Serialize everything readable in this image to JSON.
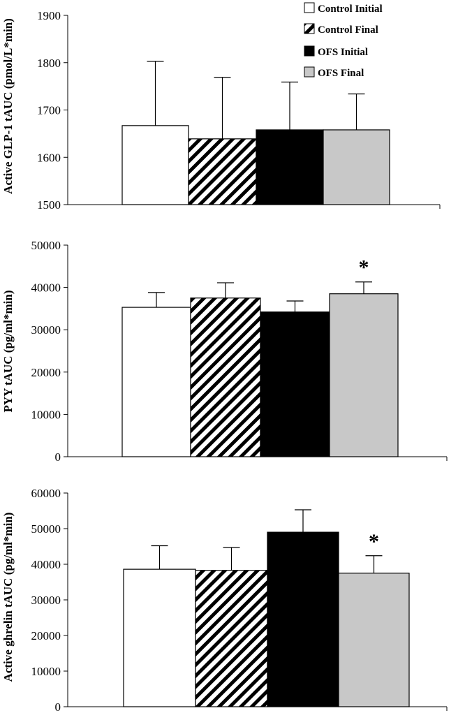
{
  "legend": [
    {
      "label": "Control Initial",
      "fill": "white"
    },
    {
      "label": "Control Final",
      "fill": "hatch"
    },
    {
      "label": "OFS Initial",
      "fill": "#000000"
    },
    {
      "label": "OFS Final",
      "fill": "#c8c8c8"
    }
  ],
  "chart_data": [
    {
      "type": "bar",
      "title": "",
      "xlabel": "",
      "ylabel": "Active GLP-1 tAUC (pmol/L*min)",
      "ylim": [
        1500,
        1900
      ],
      "yticks": [
        1500,
        1600,
        1700,
        1800,
        1900
      ],
      "categories": [
        "Control Initial",
        "Control Final",
        "OFS Initial",
        "OFS Final"
      ],
      "values": [
        1667,
        1639,
        1658,
        1658
      ],
      "errors": [
        136,
        130,
        101,
        76
      ],
      "significance": [
        "",
        "",
        "",
        ""
      ]
    },
    {
      "type": "bar",
      "title": "",
      "xlabel": "",
      "ylabel": "PYY tAUC (pg/ml*min)",
      "ylim": [
        0,
        50000
      ],
      "yticks": [
        0,
        10000,
        20000,
        30000,
        40000,
        50000
      ],
      "categories": [
        "Control Initial",
        "Control Final",
        "OFS Initial",
        "OFS Final"
      ],
      "values": [
        35300,
        37500,
        34200,
        38500
      ],
      "errors": [
        3500,
        3600,
        2600,
        2800
      ],
      "significance": [
        "",
        "",
        "",
        "*"
      ]
    },
    {
      "type": "bar",
      "title": "",
      "xlabel": "",
      "ylabel": "Active ghrelin tAUC (pg/ml*min)",
      "ylim": [
        0,
        60000
      ],
      "yticks": [
        0,
        10000,
        20000,
        30000,
        40000,
        50000,
        60000
      ],
      "categories": [
        "Control Initial",
        "Control Final",
        "OFS Initial",
        "OFS Final"
      ],
      "values": [
        38600,
        38300,
        49000,
        37500
      ],
      "errors": [
        6600,
        6400,
        6300,
        4900
      ],
      "significance": [
        "",
        "",
        "",
        "*"
      ]
    }
  ]
}
